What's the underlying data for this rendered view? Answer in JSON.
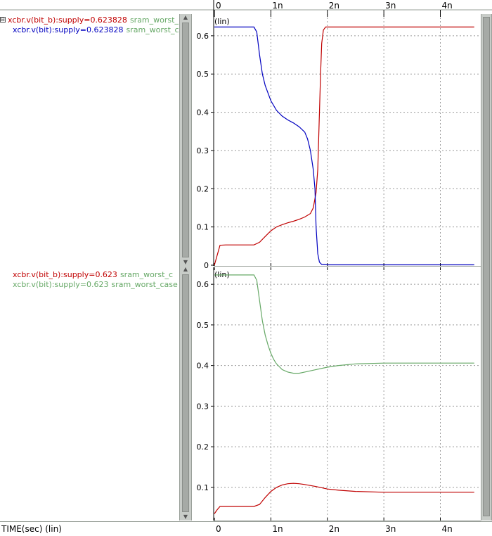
{
  "colors": {
    "red": "#c00000",
    "blue": "#0000c0",
    "green": "#66a866",
    "grid": "#9a9a9a",
    "frame": "#000000"
  },
  "panels": [
    {
      "legend": [
        {
          "signal": "xcbr.v(bit_b):supply=0.623828",
          "source": "sram_worst_c",
          "color": "#c00000",
          "source_color": "#66a866",
          "expander": "⊟"
        },
        {
          "signal": "xcbr.v(bit):supply=0.623828",
          "source": "sram_worst_c",
          "color": "#0000c0",
          "source_color": "#66a866"
        }
      ]
    },
    {
      "legend": [
        {
          "signal": "xcbr.v(bit_b):supply=0.623",
          "source": "sram_worst_c",
          "color": "#c00000",
          "source_color": "#66a866"
        },
        {
          "signal": "xcbr.v(bit):supply=0.623",
          "source": "sram_worst_case",
          "color": "#66a866",
          "source_color": "#66a866"
        }
      ]
    }
  ],
  "status": {
    "x_axis_label": "TIME(sec) (lin)"
  },
  "chart_data": [
    {
      "type": "line",
      "scale_label": "(lin)",
      "xlim": [
        0,
        4.6
      ],
      "ylim": [
        0,
        0.62
      ],
      "x_ticks": [
        0,
        1,
        2,
        3,
        4
      ],
      "x_tick_labels": [
        "0",
        "1n",
        "2n",
        "3n",
        "4n"
      ],
      "y_ticks": [
        0,
        0.1,
        0.2,
        0.3,
        0.4,
        0.5,
        0.6
      ],
      "y_tick_labels": [
        "0",
        "0.1",
        "0.2",
        "0.3",
        "0.4",
        "0.5",
        "0.6"
      ],
      "grid": true,
      "series": [
        {
          "color": "#c00000",
          "points": [
            [
              0,
              0
            ],
            [
              0.1,
              0.052
            ],
            [
              0.2,
              0.053
            ],
            [
              0.7,
              0.053
            ],
            [
              0.8,
              0.06
            ],
            [
              0.9,
              0.075
            ],
            [
              1.0,
              0.09
            ],
            [
              1.1,
              0.1
            ],
            [
              1.2,
              0.106
            ],
            [
              1.3,
              0.111
            ],
            [
              1.4,
              0.115
            ],
            [
              1.5,
              0.12
            ],
            [
              1.6,
              0.126
            ],
            [
              1.7,
              0.135
            ],
            [
              1.75,
              0.15
            ],
            [
              1.8,
              0.19
            ],
            [
              1.83,
              0.25
            ],
            [
              1.86,
              0.4
            ],
            [
              1.88,
              0.5
            ],
            [
              1.9,
              0.58
            ],
            [
              1.93,
              0.615
            ],
            [
              1.97,
              0.623
            ],
            [
              2.0,
              0.623
            ],
            [
              4.6,
              0.623
            ]
          ]
        },
        {
          "color": "#0000c0",
          "points": [
            [
              0,
              0.623
            ],
            [
              0.7,
              0.623
            ],
            [
              0.75,
              0.61
            ],
            [
              0.8,
              0.55
            ],
            [
              0.85,
              0.5
            ],
            [
              0.9,
              0.47
            ],
            [
              1.0,
              0.43
            ],
            [
              1.1,
              0.405
            ],
            [
              1.2,
              0.39
            ],
            [
              1.3,
              0.38
            ],
            [
              1.4,
              0.372
            ],
            [
              1.5,
              0.362
            ],
            [
              1.6,
              0.348
            ],
            [
              1.65,
              0.33
            ],
            [
              1.7,
              0.3
            ],
            [
              1.75,
              0.25
            ],
            [
              1.78,
              0.2
            ],
            [
              1.8,
              0.1
            ],
            [
              1.83,
              0.03
            ],
            [
              1.86,
              0.008
            ],
            [
              1.9,
              0.002
            ],
            [
              2.0,
              0.001
            ],
            [
              4.6,
              0.001
            ]
          ]
        }
      ]
    },
    {
      "type": "line",
      "scale_label": "(lin)",
      "xlim": [
        0,
        4.6
      ],
      "ylim": [
        0.027,
        0.628
      ],
      "x_ticks": [
        0,
        1,
        2,
        3,
        4
      ],
      "x_tick_labels": [
        "0",
        "1n",
        "2n",
        "3n",
        "4n"
      ],
      "y_ticks": [
        0.1,
        0.2,
        0.3,
        0.4,
        0.5,
        0.6
      ],
      "y_tick_labels": [
        "0.1",
        "0.2",
        "0.3",
        "0.4",
        "0.5",
        "0.6"
      ],
      "grid": true,
      "series": [
        {
          "color": "#c00000",
          "points": [
            [
              0,
              0.035
            ],
            [
              0.05,
              0.045
            ],
            [
              0.1,
              0.053
            ],
            [
              0.2,
              0.053
            ],
            [
              0.7,
              0.053
            ],
            [
              0.8,
              0.058
            ],
            [
              0.9,
              0.075
            ],
            [
              1.0,
              0.09
            ],
            [
              1.1,
              0.1
            ],
            [
              1.2,
              0.106
            ],
            [
              1.3,
              0.109
            ],
            [
              1.4,
              0.11
            ],
            [
              1.5,
              0.109
            ],
            [
              1.6,
              0.107
            ],
            [
              1.8,
              0.102
            ],
            [
              2.0,
              0.096
            ],
            [
              2.2,
              0.093
            ],
            [
              2.5,
              0.09
            ],
            [
              3.0,
              0.088
            ],
            [
              3.5,
              0.088
            ],
            [
              4.6,
              0.088
            ]
          ]
        },
        {
          "color": "#66a866",
          "points": [
            [
              0,
              0.623
            ],
            [
              0.7,
              0.623
            ],
            [
              0.75,
              0.61
            ],
            [
              0.8,
              0.56
            ],
            [
              0.85,
              0.51
            ],
            [
              0.9,
              0.475
            ],
            [
              0.95,
              0.45
            ],
            [
              1.0,
              0.43
            ],
            [
              1.05,
              0.415
            ],
            [
              1.1,
              0.404
            ],
            [
              1.2,
              0.39
            ],
            [
              1.3,
              0.384
            ],
            [
              1.4,
              0.381
            ],
            [
              1.5,
              0.381
            ],
            [
              1.6,
              0.384
            ],
            [
              1.8,
              0.39
            ],
            [
              2.0,
              0.396
            ],
            [
              2.2,
              0.4
            ],
            [
              2.5,
              0.404
            ],
            [
              3.0,
              0.406
            ],
            [
              4.6,
              0.406
            ]
          ]
        }
      ]
    }
  ]
}
